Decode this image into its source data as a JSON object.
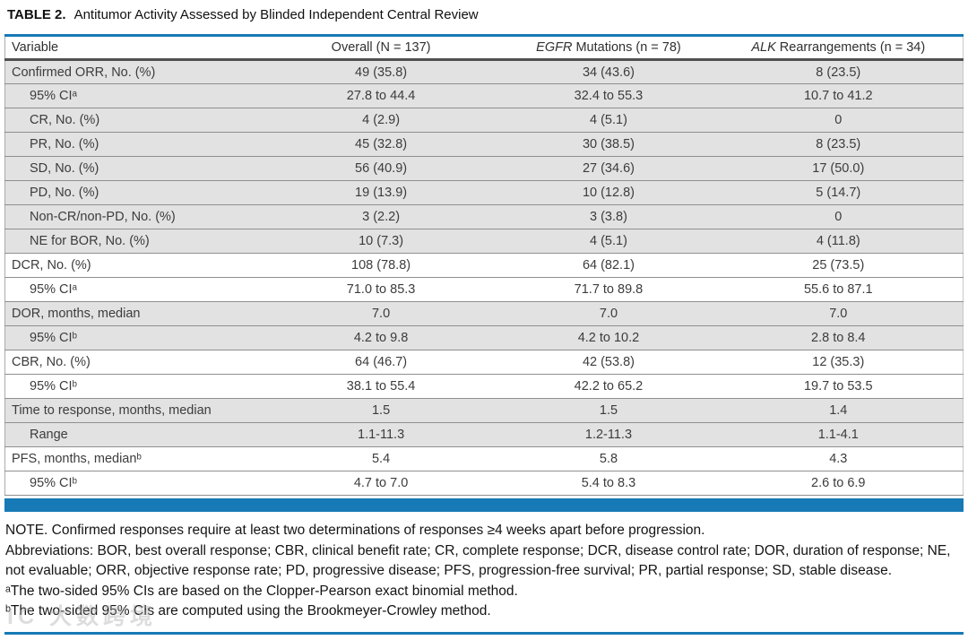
{
  "title": {
    "label": "TABLE 2.",
    "text": "Antitumor Activity Assessed by Blinded Independent Central Review"
  },
  "table": {
    "columns": {
      "variable": "Variable",
      "overall": "Overall (N = 137)",
      "egfr_gene": "EGFR",
      "egfr_rest": " Mutations (n = 78)",
      "alk_gene": "ALK",
      "alk_rest": " Rearrangements (n = 34)"
    },
    "rows": [
      {
        "label": "Confirmed ORR, No. (%)",
        "overall": "49 (35.8)",
        "egfr": "34 (43.6)",
        "alk": "8 (23.5)",
        "indent": false,
        "shaded": true
      },
      {
        "label": "95% CIᵃ",
        "overall": "27.8 to 44.4",
        "egfr": "32.4 to 55.3",
        "alk": "10.7 to 41.2",
        "indent": true,
        "shaded": true
      },
      {
        "label": "CR, No. (%)",
        "overall": "4 (2.9)",
        "egfr": "4 (5.1)",
        "alk": "0",
        "indent": true,
        "shaded": true
      },
      {
        "label": "PR, No. (%)",
        "overall": "45 (32.8)",
        "egfr": "30 (38.5)",
        "alk": "8 (23.5)",
        "indent": true,
        "shaded": true
      },
      {
        "label": "SD, No. (%)",
        "overall": "56 (40.9)",
        "egfr": "27 (34.6)",
        "alk": "17 (50.0)",
        "indent": true,
        "shaded": true
      },
      {
        "label": "PD, No. (%)",
        "overall": "19 (13.9)",
        "egfr": "10 (12.8)",
        "alk": "5 (14.7)",
        "indent": true,
        "shaded": true
      },
      {
        "label": "Non-CR/non-PD, No. (%)",
        "overall": "3 (2.2)",
        "egfr": "3 (3.8)",
        "alk": "0",
        "indent": true,
        "shaded": true
      },
      {
        "label": "NE for BOR, No. (%)",
        "overall": "10 (7.3)",
        "egfr": "4 (5.1)",
        "alk": "4 (11.8)",
        "indent": true,
        "shaded": true
      },
      {
        "label": "DCR, No. (%)",
        "overall": "108 (78.8)",
        "egfr": "64 (82.1)",
        "alk": "25 (73.5)",
        "indent": false,
        "shaded": false
      },
      {
        "label": "95% CIᵃ",
        "overall": "71.0 to 85.3",
        "egfr": "71.7 to 89.8",
        "alk": "55.6 to 87.1",
        "indent": true,
        "shaded": false
      },
      {
        "label": "DOR, months, median",
        "overall": "7.0",
        "egfr": "7.0",
        "alk": "7.0",
        "indent": false,
        "shaded": true
      },
      {
        "label": "95% CIᵇ",
        "overall": "4.2 to 9.8",
        "egfr": "4.2 to 10.2",
        "alk": "2.8 to 8.4",
        "indent": true,
        "shaded": true
      },
      {
        "label": "CBR, No. (%)",
        "overall": "64 (46.7)",
        "egfr": "42 (53.8)",
        "alk": "12 (35.3)",
        "indent": false,
        "shaded": false
      },
      {
        "label": "95% CIᵇ",
        "overall": "38.1 to 55.4",
        "egfr": "42.2 to 65.2",
        "alk": "19.7 to 53.5",
        "indent": true,
        "shaded": false
      },
      {
        "label": "Time to response, months, median",
        "overall": "1.5",
        "egfr": "1.5",
        "alk": "1.4",
        "indent": false,
        "shaded": true
      },
      {
        "label": "Range",
        "overall": "1.1-11.3",
        "egfr": "1.2-11.3",
        "alk": "1.1-4.1",
        "indent": true,
        "shaded": true
      },
      {
        "label": "PFS, months, medianᵇ",
        "overall": "5.4",
        "egfr": "5.8",
        "alk": "4.3",
        "indent": false,
        "shaded": false
      },
      {
        "label": "95% CIᵇ",
        "overall": "4.7 to 7.0",
        "egfr": "5.4 to 8.3",
        "alk": "2.6 to 6.9",
        "indent": true,
        "shaded": false
      }
    ]
  },
  "notes": {
    "note": "NOTE. Confirmed responses require at least two determinations of responses ≥4 weeks apart before progression.",
    "abbreviations": "Abbreviations: BOR, best overall response; CBR, clinical benefit rate; CR, complete response; DCR, disease control rate; DOR, duration of response; NE, not evaluable; ORR, objective response rate; PD, progressive disease; PFS, progression-free survival; PR, partial response; SD, stable disease.",
    "footnote_a": "ᵃThe two-sided 95% CIs are based on the Clopper-Pearson exact binomial method.",
    "footnote_b": "ᵇThe two-sided 95% CIs are computed using the Brookmeyer-Crowley method."
  },
  "watermark": "IC 大数跨境",
  "colors": {
    "accent_blue": "#1779b5",
    "row_shade": "#e2e2e2"
  }
}
